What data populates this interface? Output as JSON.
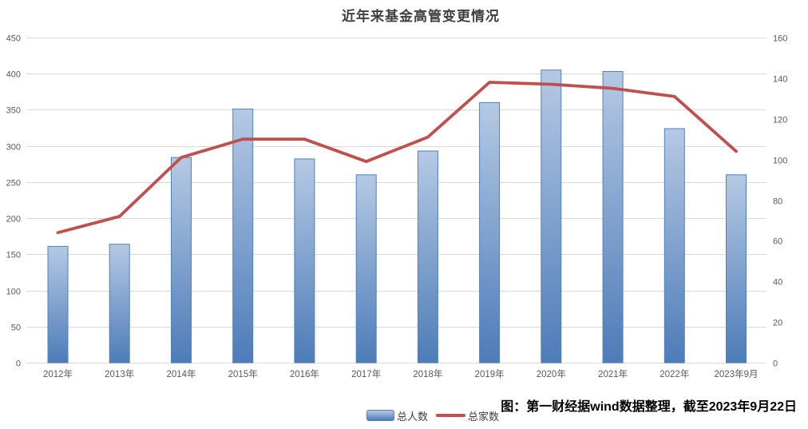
{
  "title": "近年来基金高管变更情况",
  "caption": "图：第一财经据wind数据整理，截至2023年9月22日",
  "legend": {
    "bar_label": "总人数",
    "line_label": "总家数"
  },
  "colors": {
    "bar_fill_top": "#b5c9e4",
    "bar_fill_bottom": "#4d7cb8",
    "bar_border": "#4f81bd",
    "line": "#c0504d",
    "gridline": "#d9d9d9",
    "axis_text": "#595959",
    "title_text": "#3f3f3f"
  },
  "chart_data": {
    "type": "combo-bar-line",
    "title": "近年来基金高管变更情况",
    "categories": [
      "2012年",
      "2013年",
      "2014年",
      "2015年",
      "2016年",
      "2017年",
      "2018年",
      "2019年",
      "2020年",
      "2021年",
      "2022年",
      "2023年9月"
    ],
    "series": [
      {
        "name": "总人数",
        "type": "bar",
        "axis": "left",
        "values": [
          161,
          164,
          284,
          351,
          282,
          260,
          293,
          360,
          405,
          403,
          324,
          260
        ]
      },
      {
        "name": "总家数",
        "type": "line",
        "axis": "right",
        "values": [
          64,
          72,
          101,
          110,
          110,
          99,
          111,
          138,
          137,
          135,
          131,
          104
        ]
      }
    ],
    "left_axis": {
      "min": 0,
      "max": 450,
      "step": 50,
      "tick_labels": [
        "450",
        "400",
        "350",
        "300",
        "250",
        "200",
        "150",
        "100",
        "50",
        "0"
      ]
    },
    "right_axis": {
      "min": 0,
      "max": 160,
      "step": 20,
      "tick_labels": [
        "160",
        "140",
        "120",
        "100",
        "80",
        "60",
        "40",
        "20",
        "0"
      ]
    },
    "grid": "horizontal-only",
    "legend_position": "bottom-center",
    "source_note": "图：第一财经据wind数据整理，截至2023年9月22日"
  }
}
